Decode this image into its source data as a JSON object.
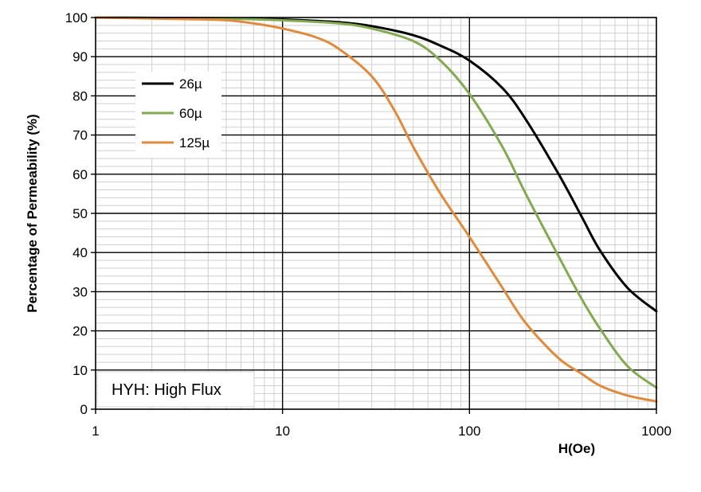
{
  "chart_data": {
    "type": "line",
    "x_scale": "log",
    "xlabel": "H(Oe)",
    "ylabel": "Percentage of Permeability (%)",
    "xlim": [
      1,
      1000
    ],
    "ylim": [
      0,
      100
    ],
    "x_ticks": [
      "1",
      "10",
      "100",
      "1000"
    ],
    "y_ticks": [
      "0",
      "10",
      "20",
      "30",
      "40",
      "50",
      "60",
      "70",
      "80",
      "90",
      "100"
    ],
    "grid": true,
    "legend_position": "top-left",
    "annotation": "HYH: High Flux",
    "series": [
      {
        "name": "26µ",
        "color": "#000000",
        "points": [
          [
            1,
            100
          ],
          [
            5,
            99.8
          ],
          [
            10,
            99.5
          ],
          [
            20,
            98.8
          ],
          [
            30,
            97.8
          ],
          [
            50,
            95.5
          ],
          [
            70,
            92.8
          ],
          [
            100,
            89
          ],
          [
            150,
            82
          ],
          [
            200,
            74
          ],
          [
            300,
            60
          ],
          [
            400,
            49
          ],
          [
            500,
            40.5
          ],
          [
            700,
            31
          ],
          [
            1000,
            25
          ]
        ]
      },
      {
        "name": "60µ",
        "color": "#83a951",
        "points": [
          [
            1,
            100
          ],
          [
            5,
            99.7
          ],
          [
            10,
            99.3
          ],
          [
            20,
            98.5
          ],
          [
            30,
            97.2
          ],
          [
            50,
            94
          ],
          [
            70,
            89
          ],
          [
            100,
            80.5
          ],
          [
            150,
            67
          ],
          [
            200,
            55
          ],
          [
            300,
            39
          ],
          [
            400,
            28
          ],
          [
            500,
            20.5
          ],
          [
            700,
            11
          ],
          [
            1000,
            5.5
          ]
        ]
      },
      {
        "name": "125µ",
        "color": "#e08a3c",
        "points": [
          [
            1,
            100
          ],
          [
            3,
            99.6
          ],
          [
            5,
            99.3
          ],
          [
            7,
            98.5
          ],
          [
            10,
            97.2
          ],
          [
            15,
            95
          ],
          [
            20,
            92
          ],
          [
            30,
            85
          ],
          [
            40,
            76
          ],
          [
            50,
            67
          ],
          [
            70,
            55
          ],
          [
            100,
            44
          ],
          [
            150,
            31
          ],
          [
            200,
            22
          ],
          [
            300,
            13
          ],
          [
            400,
            9
          ],
          [
            500,
            6
          ],
          [
            700,
            3.5
          ],
          [
            1000,
            2
          ]
        ]
      }
    ]
  }
}
